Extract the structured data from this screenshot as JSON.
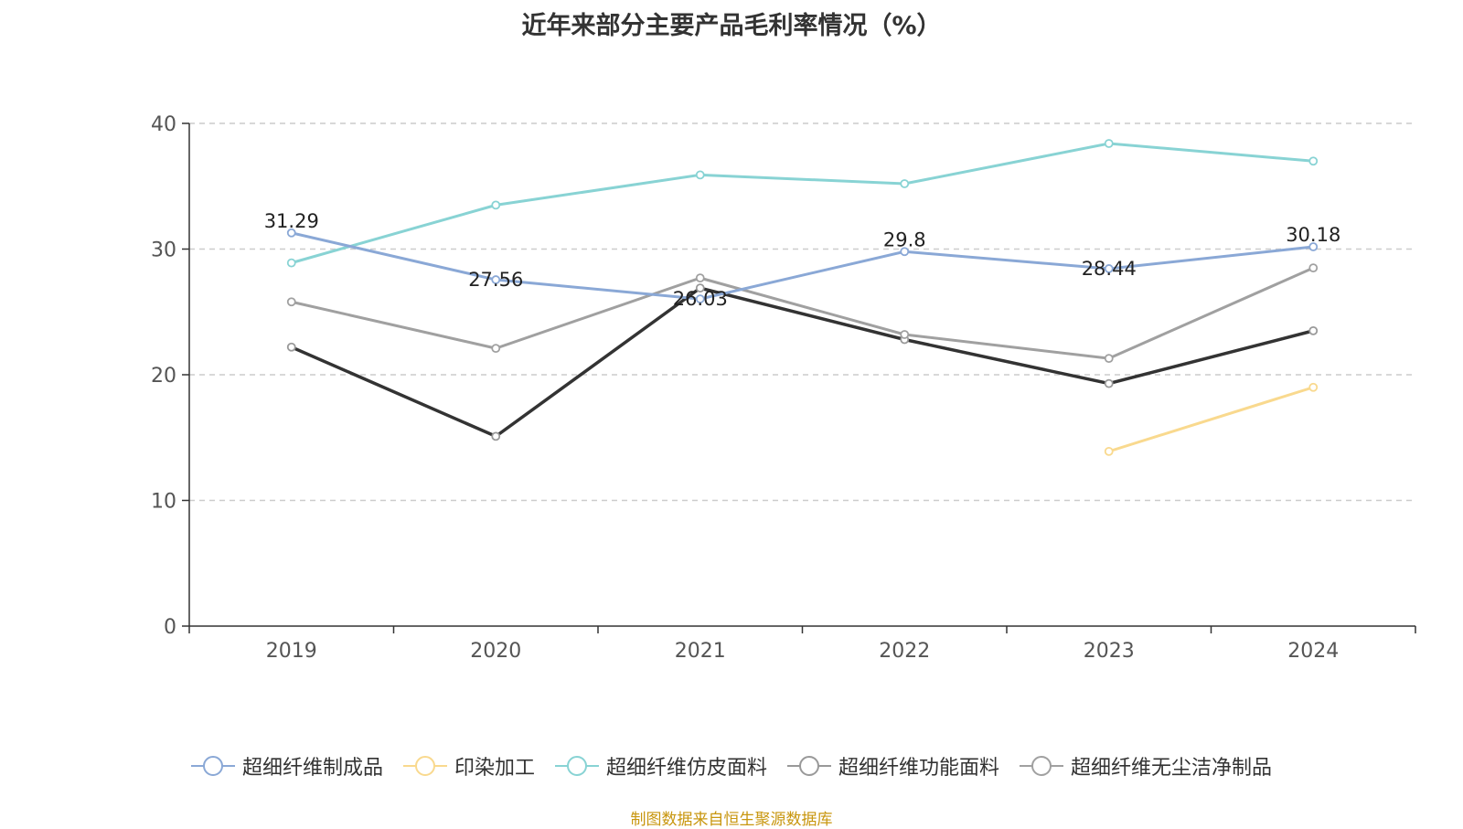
{
  "chart_data": {
    "type": "line",
    "title": "近年来部分主要产品毛利率情况（%）",
    "categories": [
      "2019",
      "2020",
      "2021",
      "2022",
      "2023",
      "2024"
    ],
    "ylim": [
      0,
      40
    ],
    "yticks": [
      "0",
      "10",
      "20",
      "30",
      "40"
    ],
    "grid": "dashed horizontal",
    "legend_position": "bottom",
    "series": [
      {
        "name": "超细纤维制成品",
        "color": "#8aa8d6",
        "values": [
          31.29,
          27.56,
          26.03,
          29.8,
          28.44,
          30.18
        ],
        "labels": [
          "31.29",
          "27.56",
          "26.03",
          "29.8",
          "28.44",
          "30.18"
        ]
      },
      {
        "name": "印染加工",
        "color": "#f9d98e",
        "values": [
          null,
          null,
          null,
          null,
          13.9,
          19.0
        ]
      },
      {
        "name": "超细纤维仿皮面料",
        "color": "#88d3d4",
        "values": [
          28.9,
          33.5,
          35.9,
          35.2,
          38.4,
          37.0
        ]
      },
      {
        "name": "超细纤维功能面料",
        "color": "#333333",
        "values": [
          22.2,
          15.1,
          26.9,
          22.8,
          19.3,
          23.5
        ]
      },
      {
        "name": "超细纤维无尘洁净制品",
        "color": "#a0a0a0",
        "values": [
          25.8,
          22.1,
          27.7,
          23.2,
          21.3,
          28.5
        ]
      }
    ]
  },
  "legend_marker_colors": [
    "#8aa8d6",
    "#f9d98e",
    "#88d3d4",
    "#999999",
    "#a0a0a0"
  ],
  "source_note": "制图数据来自恒生聚源数据库"
}
